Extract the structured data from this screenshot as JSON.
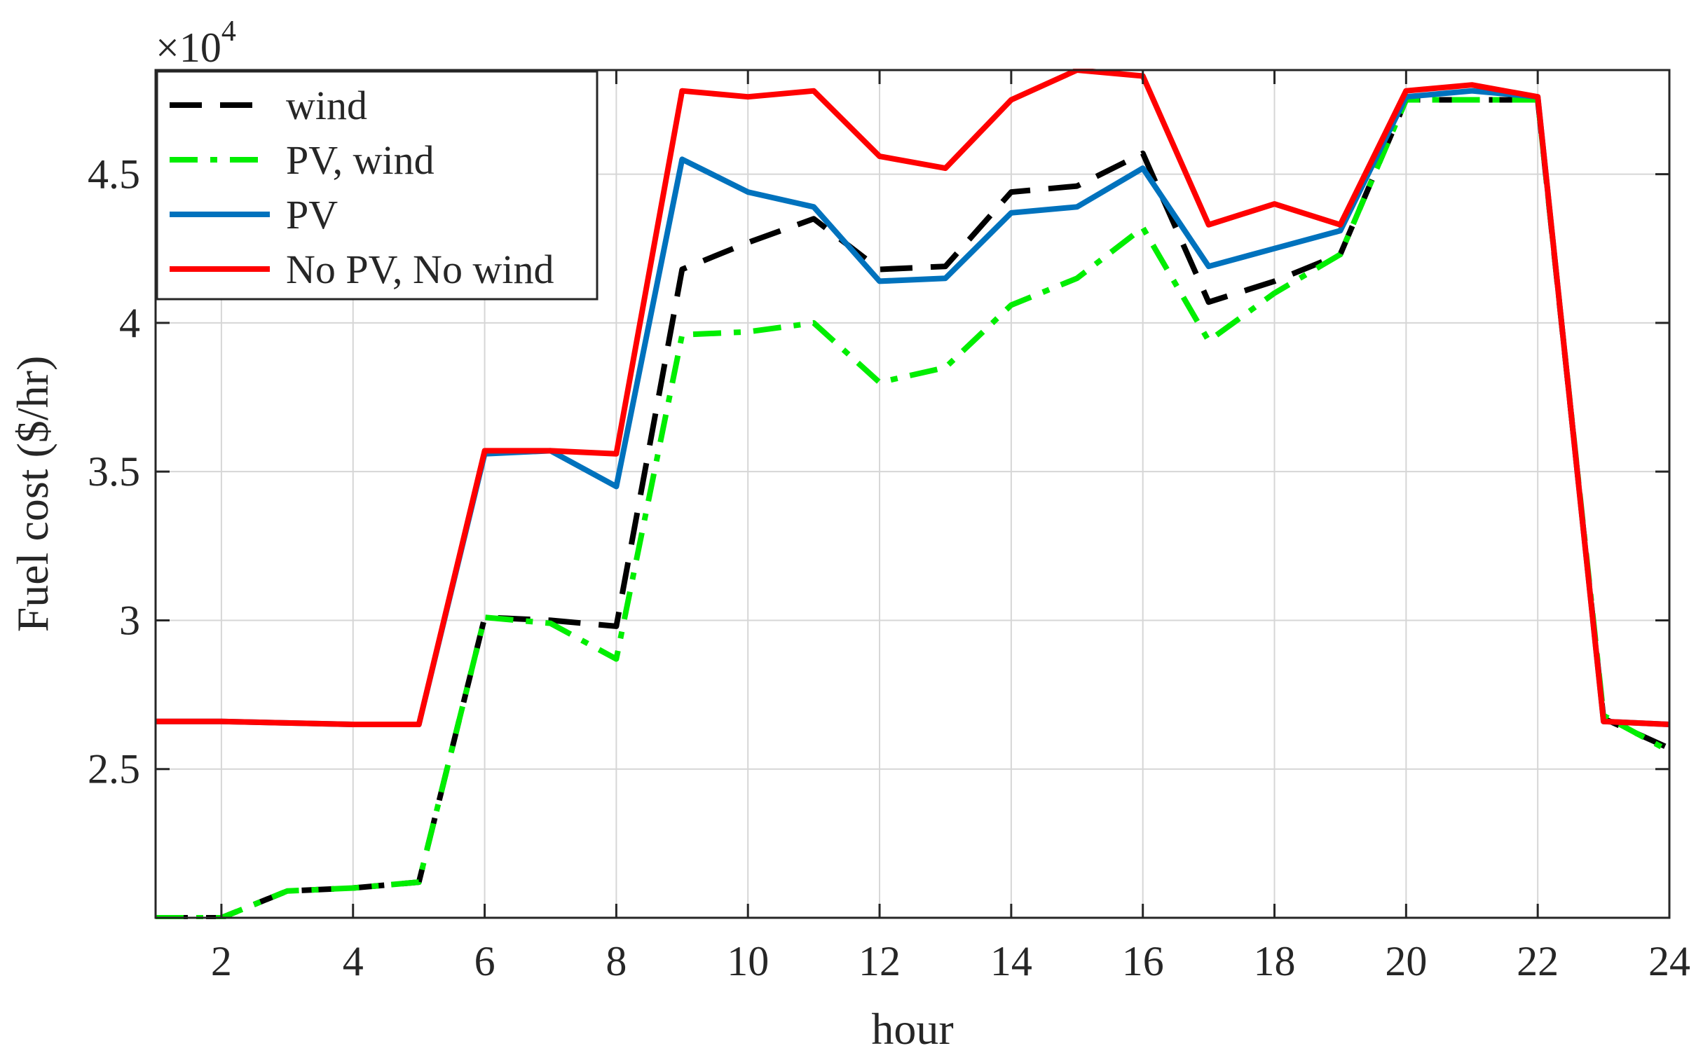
{
  "chart_data": {
    "type": "line",
    "title": "",
    "xlabel": "hour",
    "ylabel": "Fuel cost ($/hr)",
    "exponent_label": "×10",
    "exponent_power": "4",
    "xlim": [
      1,
      24
    ],
    "ylim": [
      2.0,
      4.85
    ],
    "xticks": [
      "2",
      "4",
      "6",
      "8",
      "10",
      "12",
      "14",
      "16",
      "18",
      "20",
      "22",
      "24"
    ],
    "yticks": [
      "2.5",
      "3",
      "3.5",
      "4",
      "4.5"
    ],
    "grid": true,
    "legend_position": "top-left",
    "x": [
      1,
      2,
      3,
      4,
      5,
      6,
      7,
      8,
      9,
      10,
      11,
      12,
      13,
      14,
      15,
      16,
      17,
      18,
      19,
      20,
      21,
      22,
      23,
      24
    ],
    "series": [
      {
        "name": "wind",
        "color": "#000000",
        "style": "dashed",
        "values": [
          2.0,
          2.0,
          2.09,
          2.1,
          2.12,
          3.01,
          3.0,
          2.98,
          4.18,
          4.27,
          4.35,
          4.18,
          4.19,
          4.44,
          4.46,
          4.57,
          4.07,
          4.14,
          4.23,
          4.75,
          4.75,
          4.75,
          2.67,
          2.57
        ]
      },
      {
        "name": " PV, wind",
        "color": "#00ee00",
        "style": "dashdot",
        "values": [
          2.0,
          2.0,
          2.09,
          2.1,
          2.12,
          3.01,
          2.99,
          2.87,
          3.96,
          3.97,
          4.0,
          3.8,
          3.85,
          4.06,
          4.15,
          4.32,
          3.94,
          4.1,
          4.23,
          4.75,
          4.75,
          4.75,
          2.68,
          2.56
        ]
      },
      {
        "name": "PV",
        "color": "#0072bd",
        "style": "solid",
        "values": [
          2.66,
          2.66,
          2.655,
          2.65,
          2.65,
          3.56,
          3.57,
          3.45,
          4.55,
          4.44,
          4.39,
          4.14,
          4.15,
          4.37,
          4.39,
          4.52,
          4.19,
          4.25,
          4.31,
          4.76,
          4.78,
          4.76,
          2.66,
          2.65
        ]
      },
      {
        "name": "No PV, No wind",
        "color": "#ff0000",
        "style": "solid",
        "values": [
          2.66,
          2.66,
          2.655,
          2.65,
          2.65,
          3.57,
          3.57,
          3.56,
          4.78,
          4.76,
          4.78,
          4.56,
          4.52,
          4.75,
          4.85,
          4.83,
          4.33,
          4.4,
          4.33,
          4.78,
          4.8,
          4.76,
          2.66,
          2.65
        ]
      }
    ]
  }
}
